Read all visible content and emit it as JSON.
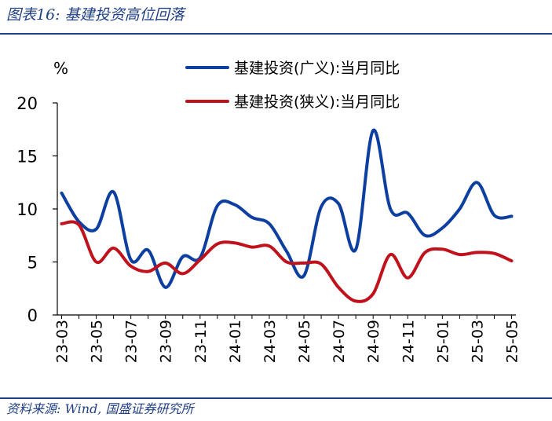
{
  "header": {
    "title": "图表16:  基建投资高位回落"
  },
  "footer": {
    "source": "资料来源:  Wind,  国盛证券研究所"
  },
  "colors": {
    "series_1": "#0d3fa0",
    "series_2": "#c0121c",
    "rule": "#1f3f86"
  },
  "chart_data": {
    "type": "line",
    "unit": "%",
    "ylim": [
      0,
      20
    ],
    "yticks": [
      0,
      5,
      10,
      15,
      20
    ],
    "xlim": [
      "2023-03",
      "2025-05"
    ],
    "xticks": [
      "23-03",
      "23-05",
      "23-07",
      "23-09",
      "23-11",
      "24-01",
      "24-03",
      "24-05",
      "24-07",
      "24-09",
      "24-11",
      "25-01",
      "25-03",
      "25-05"
    ],
    "legend_position": "top-right",
    "grid": false,
    "series": [
      {
        "name": "基建投资(广义):当月同比",
        "color": "#0d3fa0",
        "points": [
          [
            "2023-03",
            11.5
          ],
          [
            "2023-04",
            8.8
          ],
          [
            "2023-05",
            8.1
          ],
          [
            "2023-06",
            11.6
          ],
          [
            "2023-07",
            5.2
          ],
          [
            "2023-08",
            6.1
          ],
          [
            "2023-09",
            2.6
          ],
          [
            "2023-10",
            5.5
          ],
          [
            "2023-11",
            5.4
          ],
          [
            "2023-12",
            10.3
          ],
          [
            "2024-01",
            10.4
          ],
          [
            "2024-02",
            9.2
          ],
          [
            "2024-03",
            8.6
          ],
          [
            "2024-04",
            6.0
          ],
          [
            "2024-05",
            3.7
          ],
          [
            "2024-06",
            10.2
          ],
          [
            "2024-07",
            10.5
          ],
          [
            "2024-08",
            6.2
          ],
          [
            "2024-09",
            17.4
          ],
          [
            "2024-10",
            10.0
          ],
          [
            "2024-11",
            9.6
          ],
          [
            "2024-12",
            7.5
          ],
          [
            "2025-01",
            8.2
          ],
          [
            "2025-02",
            10.0
          ],
          [
            "2025-03",
            12.5
          ],
          [
            "2025-04",
            9.4
          ],
          [
            "2025-05",
            9.3
          ]
        ]
      },
      {
        "name": "基建投资(狭义):当月同比",
        "color": "#c0121c",
        "points": [
          [
            "2023-03",
            8.6
          ],
          [
            "2023-04",
            8.5
          ],
          [
            "2023-05",
            5.0
          ],
          [
            "2023-06",
            6.3
          ],
          [
            "2023-07",
            4.6
          ],
          [
            "2023-08",
            4.1
          ],
          [
            "2023-09",
            4.9
          ],
          [
            "2023-10",
            3.9
          ],
          [
            "2023-11",
            5.2
          ],
          [
            "2023-12",
            6.7
          ],
          [
            "2024-01",
            6.8
          ],
          [
            "2024-02",
            6.4
          ],
          [
            "2024-03",
            6.5
          ],
          [
            "2024-04",
            5.0
          ],
          [
            "2024-05",
            4.9
          ],
          [
            "2024-06",
            4.8
          ],
          [
            "2024-07",
            2.6
          ],
          [
            "2024-08",
            1.3
          ],
          [
            "2024-09",
            2.0
          ],
          [
            "2024-10",
            5.7
          ],
          [
            "2024-11",
            3.5
          ],
          [
            "2024-12",
            5.9
          ],
          [
            "2025-01",
            6.2
          ],
          [
            "2025-02",
            5.7
          ],
          [
            "2025-03",
            5.9
          ],
          [
            "2025-04",
            5.8
          ],
          [
            "2025-05",
            5.1
          ]
        ]
      }
    ]
  }
}
